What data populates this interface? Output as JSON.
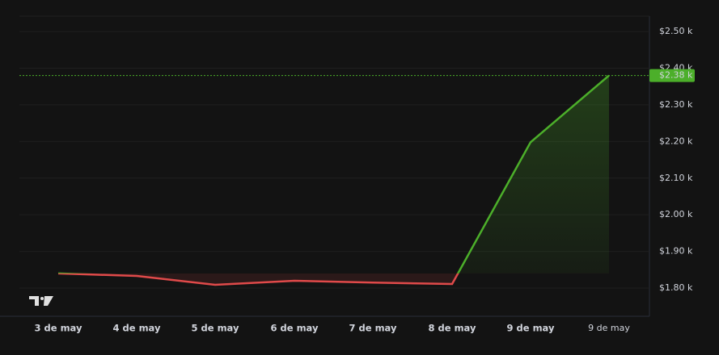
{
  "chart_data": {
    "type": "line",
    "categories": [
      "3 de may",
      "4 de may",
      "5 de may",
      "6 de may",
      "7 de may",
      "8 de may",
      "9 de may",
      "9 de may"
    ],
    "series": [
      {
        "name": null,
        "color": "#4caf2a",
        "values": [
          1840,
          1833,
          1809,
          1820,
          1815,
          1811,
          2198,
          2380
        ],
        "value_labels": [
          null,
          null,
          null,
          null,
          null,
          null,
          null,
          "$2.38 k"
        ]
      }
    ],
    "down_color": "#e04a4a",
    "ylim": [
      1723,
      2542
    ],
    "yticks": [
      {
        "value": 1800,
        "label": "$1.80 k"
      },
      {
        "value": 1900,
        "label": "$1.90 k"
      },
      {
        "value": 2000,
        "label": "$2.00 k"
      },
      {
        "value": 2100,
        "label": "$2.10 k"
      },
      {
        "value": 2200,
        "label": "$2.20 k"
      },
      {
        "value": 2300,
        "label": "$2.30 k"
      },
      {
        "value": 2400,
        "label": "$2.40 k"
      },
      {
        "value": 2500,
        "label": "$2.50 k"
      }
    ],
    "grid": true
  }
}
